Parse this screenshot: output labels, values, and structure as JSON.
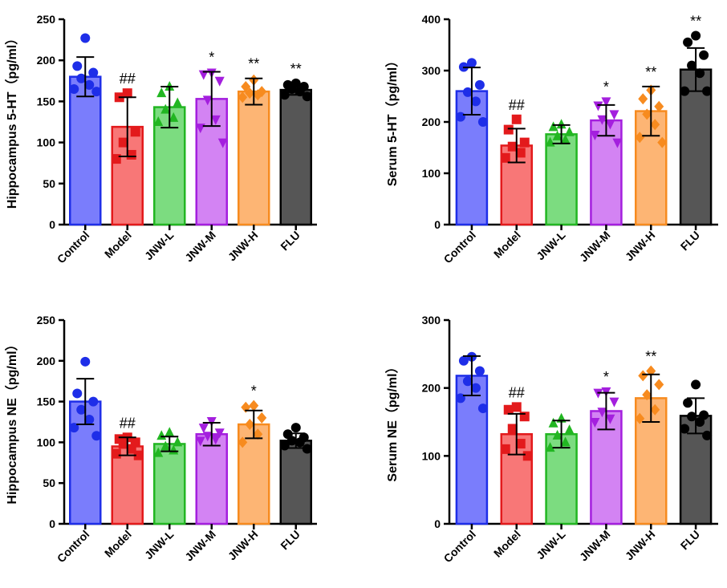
{
  "chart_data": [
    {
      "type": "bar",
      "title": "",
      "xlabel": "",
      "ylabel": "Hippocampus 5-HT（pg/ml）",
      "categories": [
        "Control",
        "Model",
        "JNW-L",
        "JNW-M",
        "JNW-H",
        "FLU"
      ],
      "ylim": [
        0,
        250
      ],
      "yticks": [
        0,
        50,
        100,
        150,
        200,
        250
      ],
      "means": [
        180,
        119,
        143,
        153,
        162,
        164
      ],
      "sd": [
        24,
        36,
        25,
        33,
        16,
        6
      ],
      "points": [
        [
          227,
          193,
          185,
          178,
          170,
          165,
          162
        ],
        [
          160,
          155,
          113,
          100,
          85,
          80
        ],
        [
          168,
          160,
          148,
          140,
          130,
          125
        ],
        [
          185,
          183,
          175,
          152,
          128,
          118,
          100
        ],
        [
          176,
          168,
          162,
          160,
          158,
          155
        ],
        [
          172,
          170,
          168,
          165,
          162,
          158,
          156
        ]
      ],
      "annotations": [
        "",
        "##",
        "",
        "*",
        "**",
        "**"
      ],
      "colors": [
        "#7a7dfc",
        "#f87777",
        "#7cdc80",
        "#d383f3",
        "#fdb574",
        "#565656"
      ],
      "edge_colors": [
        "#1e2ee8",
        "#e31a1c",
        "#22b622",
        "#a41fde",
        "#f78b1f",
        "#000000"
      ]
    },
    {
      "type": "bar",
      "title": "",
      "xlabel": "",
      "ylabel": "Serum 5-HT（pg/ml）",
      "categories": [
        "Control",
        "Model",
        "JNW-L",
        "JNW-M",
        "JNW-H",
        "FLU"
      ],
      "ylim": [
        0,
        400
      ],
      "yticks": [
        0,
        100,
        200,
        300,
        400
      ],
      "means": [
        260,
        154,
        176,
        203,
        221,
        302
      ],
      "sd": [
        46,
        33,
        18,
        30,
        48,
        42
      ],
      "points": [
        [
          315,
          307,
          272,
          258,
          240,
          210,
          200
        ],
        [
          205,
          185,
          160,
          152,
          140,
          130
        ],
        [
          195,
          190,
          180,
          172,
          165,
          160
        ],
        [
          240,
          232,
          215,
          205,
          196,
          175,
          160
        ],
        [
          262,
          245,
          230,
          215,
          195,
          170,
          160
        ],
        [
          368,
          355,
          330,
          310,
          295,
          260,
          260
        ]
      ],
      "annotations": [
        "",
        "##",
        "",
        "*",
        "**",
        "**"
      ],
      "colors": [
        "#7a7dfc",
        "#f87777",
        "#7cdc80",
        "#d383f3",
        "#fdb574",
        "#565656"
      ],
      "edge_colors": [
        "#1e2ee8",
        "#e31a1c",
        "#22b622",
        "#a41fde",
        "#f78b1f",
        "#000000"
      ]
    },
    {
      "type": "bar",
      "title": "",
      "xlabel": "",
      "ylabel": "Hippocampus NE（pg/ml）",
      "categories": [
        "Control",
        "Model",
        "JNW-L",
        "JNW-M",
        "JNW-H",
        "FLU"
      ],
      "ylim": [
        0,
        250
      ],
      "yticks": [
        0,
        50,
        100,
        150,
        200,
        250
      ],
      "means": [
        150,
        95,
        98,
        110,
        122,
        102
      ],
      "sd": [
        28,
        11,
        9,
        14,
        17,
        9
      ],
      "points": [
        [
          199,
          160,
          150,
          140,
          128,
          118,
          108
        ],
        [
          106,
          104,
          100,
          98,
          92,
          86,
          84
        ],
        [
          112,
          108,
          100,
          95,
          90,
          87
        ],
        [
          126,
          118,
          112,
          108,
          104,
          102
        ],
        [
          145,
          143,
          130,
          122,
          110,
          100
        ],
        [
          118,
          110,
          106,
          102,
          100,
          96,
          92
        ]
      ],
      "annotations": [
        "",
        "##",
        "",
        "",
        "*",
        ""
      ],
      "colors": [
        "#7a7dfc",
        "#f87777",
        "#7cdc80",
        "#d383f3",
        "#fdb574",
        "#565656"
      ],
      "edge_colors": [
        "#1e2ee8",
        "#e31a1c",
        "#22b622",
        "#a41fde",
        "#f78b1f",
        "#000000"
      ]
    },
    {
      "type": "bar",
      "title": "",
      "xlabel": "",
      "ylabel": "Serum NE（pg/ml）",
      "categories": [
        "Control",
        "Model",
        "JNW-L",
        "JNW-M",
        "JNW-H",
        "FLU"
      ],
      "ylim": [
        0,
        300
      ],
      "yticks": [
        0,
        100,
        200,
        300
      ],
      "means": [
        218,
        132,
        132,
        166,
        185,
        159
      ],
      "sd": [
        29,
        30,
        20,
        27,
        35,
        26
      ],
      "points": [
        [
          246,
          240,
          225,
          210,
          200,
          185,
          170
        ],
        [
          172,
          168,
          158,
          140,
          118,
          110,
          100
        ],
        [
          155,
          148,
          138,
          130,
          120,
          112
        ],
        [
          195,
          193,
          180,
          165,
          155,
          150
        ],
        [
          225,
          218,
          205,
          190,
          168,
          155
        ],
        [
          205,
          178,
          160,
          158,
          150,
          140,
          130
        ]
      ],
      "annotations": [
        "",
        "##",
        "",
        "*",
        "**",
        ""
      ],
      "colors": [
        "#7a7dfc",
        "#f87777",
        "#7cdc80",
        "#d383f3",
        "#fdb574",
        "#565656"
      ],
      "edge_colors": [
        "#1e2ee8",
        "#e31a1c",
        "#22b622",
        "#a41fde",
        "#f78b1f",
        "#000000"
      ]
    }
  ]
}
